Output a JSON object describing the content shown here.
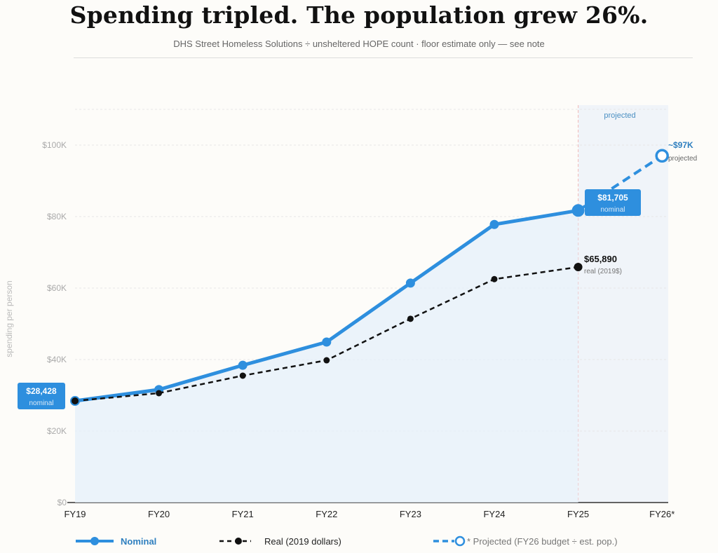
{
  "title": "Spending tripled. The population grew 26%.",
  "subtitle": "DHS Street Homeless Solutions ÷ unsheltered HOPE count · floor estimate only — see note",
  "chart_data": {
    "type": "line",
    "ylabel": "spending per person",
    "ylim": [
      0,
      110000
    ],
    "yticks": [
      0,
      20000,
      40000,
      60000,
      80000,
      100000
    ],
    "ytick_labels": [
      "$0",
      "$20K",
      "$40K",
      "$60K",
      "$80K",
      "$100K"
    ],
    "categories": [
      "FY19",
      "FY20",
      "FY21",
      "FY22",
      "FY23",
      "FY24",
      "FY25",
      "FY26*"
    ],
    "grid": true,
    "projected_region_label": "projected",
    "series": [
      {
        "name": "Nominal",
        "color": "#2e8fde",
        "style": "solid",
        "values": [
          28428,
          31600,
          38400,
          44900,
          61400,
          77800,
          81705,
          null
        ]
      },
      {
        "name": "Real (2019 dollars)",
        "color": "#111111",
        "style": "dashed",
        "values": [
          28428,
          30600,
          35500,
          39800,
          51400,
          62500,
          65890,
          null
        ]
      },
      {
        "name": "* Projected (FY26 budget ÷ est. pop.)",
        "color": "#2e8fde",
        "style": "dashed",
        "values": [
          null,
          null,
          null,
          null,
          null,
          null,
          81705,
          97000
        ]
      }
    ],
    "annotations": {
      "start": {
        "value": "$28,428",
        "sub": "nominal"
      },
      "nominal_end": {
        "value": "$81,705",
        "sub": "nominal"
      },
      "real_end": {
        "value": "$65,890",
        "sub": "real (2019$)"
      },
      "projected_end": {
        "value": "~$97K",
        "sub": "projected"
      }
    },
    "legend_position": "bottom"
  }
}
